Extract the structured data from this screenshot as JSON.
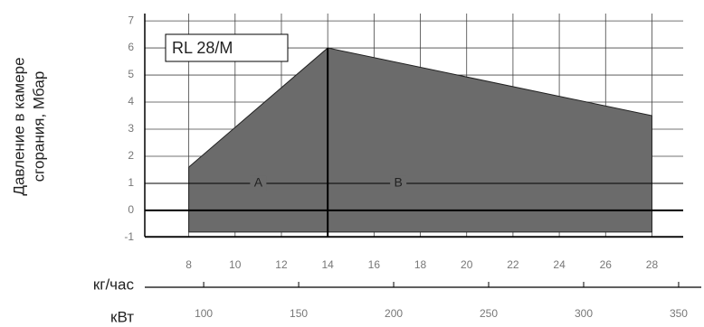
{
  "chart_data": {
    "type": "area",
    "title": "RL 28/M",
    "y_label_lines": [
      "Давление в камере",
      "сгорания, Мбар"
    ],
    "x_label": "кг/час",
    "x2_label": "кВт",
    "x": [
      8,
      14,
      28
    ],
    "values": [
      1.6,
      6,
      3.5
    ],
    "lower_values": [
      -0.8,
      -0.8,
      -0.8
    ],
    "color": "#6b6b6b",
    "zone_boundary": 14,
    "zones": [
      "A",
      "B"
    ],
    "zone_line_y": 1,
    "xlim": [
      6.1,
      29.35
    ],
    "xticks": [
      8,
      10,
      12,
      14,
      16,
      18,
      20,
      22,
      24,
      26,
      28
    ],
    "x2lim": [
      69,
      352.4
    ],
    "x2ticks": [
      100,
      150,
      200,
      250,
      300,
      350
    ],
    "ylim": [
      -0.97,
      7.27
    ],
    "yticks": [
      -1,
      0,
      1,
      2,
      3,
      4,
      5,
      6,
      7
    ],
    "grid": true
  }
}
